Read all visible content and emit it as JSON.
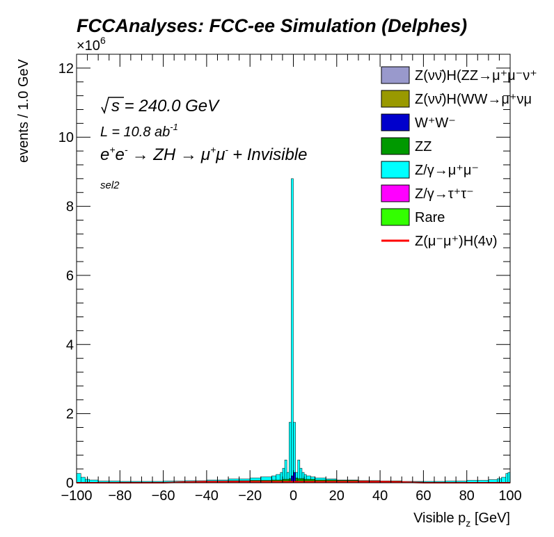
{
  "chart_data": {
    "type": "histogram",
    "title": "FCCAnalyses: FCC-ee Simulation (Delphes)",
    "xlabel": "Visible p",
    "xlabel_sub": "z",
    "xlabel_unit": " [GeV]",
    "ylabel": "events / 1.0 GeV",
    "y_multiplier": "×10",
    "y_multiplier_exp": "6",
    "xlim": [
      -100,
      100
    ],
    "ylim": [
      0,
      12.4
    ],
    "x_ticks": [
      -100,
      -80,
      -60,
      -40,
      -20,
      0,
      20,
      40,
      60,
      80,
      100
    ],
    "y_ticks": [
      0,
      2,
      4,
      6,
      8,
      10,
      12
    ],
    "annotations": {
      "sqrt_s": "s = 240.0 GeV",
      "lumi_prefix": "L = 10.8 ab",
      "lumi_exp": "-1",
      "process_e": "e",
      "process_arrow1": "→ ZH →",
      "process_mu": "μ",
      "process_suffix": "+ Invisible",
      "selection": "sel2"
    },
    "legend_position": "top-right",
    "legend": [
      {
        "label": "Z(νν̄)H(ZZ→μ⁺μ⁻ν⁺",
        "color": "#9999cc",
        "kind": "box"
      },
      {
        "label": "Z(νν̄)H(WW→μ⁺νμ",
        "color": "#999900",
        "kind": "box"
      },
      {
        "label": "W⁺W⁻",
        "color": "#0000cc",
        "kind": "box"
      },
      {
        "label": "ZZ",
        "color": "#009900",
        "kind": "box"
      },
      {
        "label": "Z/γ→μ⁺μ⁻",
        "color": "#00ffff",
        "kind": "box"
      },
      {
        "label": "Z/γ→τ⁺τ⁻",
        "color": "#ff00ff",
        "kind": "box"
      },
      {
        "label": "Rare",
        "color": "#33ff00",
        "kind": "box"
      },
      {
        "label": "Z(μ⁻μ⁺)H(4ν)",
        "color": "#ff0000",
        "kind": "line"
      }
    ],
    "stack_order": [
      "Rare",
      "Z/γ→τ⁺τ⁻",
      "ZZ",
      "W⁺W⁻",
      "Z/γ→μ⁺μ⁻"
    ],
    "series": [
      {
        "name": "Z/γ→μ⁺μ⁻",
        "color": "#00ffff",
        "x": [
          -100,
          -98,
          -96,
          -94,
          -90,
          -80,
          -70,
          -60,
          -50,
          -40,
          -30,
          -20,
          -15,
          -10,
          -8,
          -6,
          -5,
          -4,
          -3,
          -2,
          -1,
          0,
          1,
          2,
          3,
          4,
          5,
          6,
          8,
          10,
          15,
          20,
          30,
          40,
          50,
          60,
          70,
          80,
          90,
          94,
          96,
          98,
          99
        ],
        "values": [
          0.27,
          0.16,
          0.1,
          0.08,
          0.05,
          0.04,
          0.04,
          0.05,
          0.06,
          0.08,
          0.11,
          0.14,
          0.17,
          0.2,
          0.24,
          0.3,
          0.42,
          0.66,
          0.3,
          1.75,
          8.8,
          1.75,
          0.3,
          0.66,
          0.42,
          0.3,
          0.24,
          0.2,
          0.17,
          0.14,
          0.11,
          0.08,
          0.06,
          0.05,
          0.04,
          0.04,
          0.05,
          0.07,
          0.09,
          0.12,
          0.16,
          0.27,
          0.3
        ]
      },
      {
        "name": "ZZ",
        "color": "#009900",
        "x": [
          -60,
          -50,
          -40,
          -30,
          -20,
          -10,
          -5,
          -2,
          0,
          2,
          5,
          10,
          20,
          30,
          40,
          50,
          60
        ],
        "values": [
          0.01,
          0.02,
          0.05,
          0.06,
          0.07,
          0.08,
          0.1,
          0.12,
          0.14,
          0.12,
          0.1,
          0.08,
          0.07,
          0.06,
          0.05,
          0.02,
          0.01
        ]
      },
      {
        "name": "W⁺W⁻",
        "color": "#0000cc",
        "x": [
          -2,
          -1,
          0,
          1
        ],
        "values": [
          0.05,
          0.2,
          0.3,
          0.05
        ]
      },
      {
        "name": "Z/γ→τ⁺τ⁻",
        "color": "#ff00ff",
        "x": [
          -60,
          -40,
          -20,
          -5,
          0,
          5,
          20,
          40,
          60
        ],
        "values": [
          0.01,
          0.015,
          0.02,
          0.03,
          0.04,
          0.03,
          0.02,
          0.015,
          0.01
        ]
      }
    ],
    "signal": {
      "name": "Z(μ⁻μ⁺)H(4ν)",
      "color": "#ff0000",
      "x": [
        -100,
        -60,
        -55,
        -50,
        -45,
        -40,
        -30,
        -20,
        -10,
        0,
        10,
        20,
        30,
        40,
        45,
        50,
        55,
        60,
        100
      ],
      "values": [
        0.0,
        0.0,
        0.01,
        0.02,
        0.025,
        0.03,
        0.03,
        0.03,
        0.03,
        0.03,
        0.03,
        0.03,
        0.03,
        0.03,
        0.025,
        0.02,
        0.01,
        0.0,
        0.0
      ]
    }
  }
}
